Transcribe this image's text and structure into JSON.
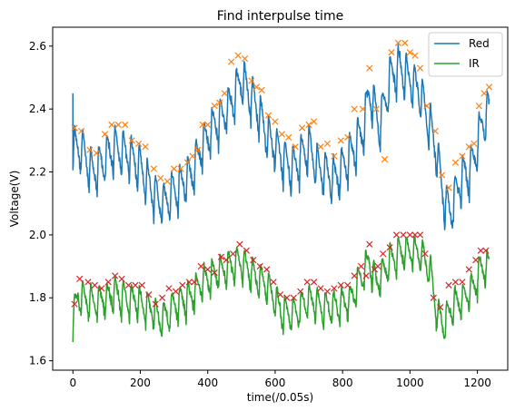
{
  "chart_data": {
    "type": "line",
    "title": "Find interpulse time",
    "xlabel": "time(/0.05s)",
    "ylabel": "Voltage(V)",
    "xlim": [
      -60,
      1290
    ],
    "ylim": [
      1.57,
      2.66
    ],
    "x_ticks": [
      0,
      200,
      400,
      600,
      800,
      1000,
      1200
    ],
    "y_ticks": [
      1.6,
      1.8,
      2.0,
      2.2,
      2.4,
      2.6
    ],
    "x_tick_labels": [
      "0",
      "200",
      "400",
      "600",
      "800",
      "1000",
      "1200"
    ],
    "y_tick_labels": [
      "1.6",
      "1.8",
      "2.0",
      "2.2",
      "2.4",
      "2.6"
    ],
    "legend_position": "top-right",
    "grid": false,
    "series": [
      {
        "name": "Red",
        "color": "#1f77b4",
        "peak_color": "#ff7f0e",
        "signal_x_max": 1235,
        "pulse_period": 24,
        "pulse_depth": 0.155,
        "envelope": [
          [
            0,
            2.35
          ],
          [
            30,
            2.34
          ],
          [
            60,
            2.27
          ],
          [
            100,
            2.32
          ],
          [
            120,
            2.35
          ],
          [
            160,
            2.33
          ],
          [
            200,
            2.29
          ],
          [
            240,
            2.2
          ],
          [
            270,
            2.17
          ],
          [
            300,
            2.21
          ],
          [
            350,
            2.26
          ],
          [
            380,
            2.35
          ],
          [
            420,
            2.42
          ],
          [
            460,
            2.47
          ],
          [
            500,
            2.57
          ],
          [
            540,
            2.49
          ],
          [
            580,
            2.38
          ],
          [
            620,
            2.32
          ],
          [
            650,
            2.28
          ],
          [
            700,
            2.35
          ],
          [
            730,
            2.28
          ],
          [
            780,
            2.25
          ],
          [
            830,
            2.34
          ],
          [
            860,
            2.4
          ],
          [
            880,
            2.53
          ],
          [
            910,
            2.42
          ],
          [
            940,
            2.57
          ],
          [
            970,
            2.61
          ],
          [
            1000,
            2.56
          ],
          [
            1030,
            2.53
          ],
          [
            1060,
            2.42
          ],
          [
            1080,
            2.33
          ],
          [
            1100,
            2.19
          ],
          [
            1120,
            2.14
          ],
          [
            1150,
            2.25
          ],
          [
            1180,
            2.28
          ],
          [
            1210,
            2.41
          ],
          [
            1235,
            2.47
          ]
        ],
        "peaks": [
          [
            5,
            2.34
          ],
          [
            25,
            2.33
          ],
          [
            50,
            2.27
          ],
          [
            70,
            2.26
          ],
          [
            95,
            2.32
          ],
          [
            115,
            2.35
          ],
          [
            135,
            2.35
          ],
          [
            155,
            2.35
          ],
          [
            175,
            2.3
          ],
          [
            195,
            2.29
          ],
          [
            215,
            2.28
          ],
          [
            240,
            2.21
          ],
          [
            260,
            2.18
          ],
          [
            280,
            2.17
          ],
          [
            300,
            2.21
          ],
          [
            320,
            2.21
          ],
          [
            340,
            2.23
          ],
          [
            355,
            2.25
          ],
          [
            370,
            2.27
          ],
          [
            385,
            2.35
          ],
          [
            400,
            2.35
          ],
          [
            420,
            2.41
          ],
          [
            435,
            2.42
          ],
          [
            450,
            2.45
          ],
          [
            470,
            2.55
          ],
          [
            490,
            2.57
          ],
          [
            510,
            2.56
          ],
          [
            530,
            2.49
          ],
          [
            545,
            2.47
          ],
          [
            560,
            2.46
          ],
          [
            580,
            2.38
          ],
          [
            600,
            2.36
          ],
          [
            620,
            2.32
          ],
          [
            640,
            2.31
          ],
          [
            660,
            2.28
          ],
          [
            680,
            2.34
          ],
          [
            700,
            2.35
          ],
          [
            715,
            2.36
          ],
          [
            735,
            2.28
          ],
          [
            755,
            2.29
          ],
          [
            775,
            2.25
          ],
          [
            795,
            2.3
          ],
          [
            815,
            2.31
          ],
          [
            835,
            2.4
          ],
          [
            860,
            2.4
          ],
          [
            880,
            2.53
          ],
          [
            900,
            2.4
          ],
          [
            925,
            2.24
          ],
          [
            945,
            2.58
          ],
          [
            965,
            2.61
          ],
          [
            985,
            2.61
          ],
          [
            1000,
            2.58
          ],
          [
            1015,
            2.57
          ],
          [
            1030,
            2.53
          ],
          [
            1050,
            2.41
          ],
          [
            1075,
            2.33
          ],
          [
            1095,
            2.19
          ],
          [
            1115,
            2.15
          ],
          [
            1135,
            2.23
          ],
          [
            1155,
            2.25
          ],
          [
            1175,
            2.28
          ],
          [
            1190,
            2.29
          ],
          [
            1205,
            2.41
          ],
          [
            1220,
            2.45
          ],
          [
            1235,
            2.47
          ]
        ]
      },
      {
        "name": "IR",
        "color": "#2ca02c",
        "peak_color": "#d62728",
        "signal_x_max": 1235,
        "pulse_period": 24,
        "pulse_depth": 0.115,
        "envelope": [
          [
            0,
            1.78
          ],
          [
            15,
            1.86
          ],
          [
            60,
            1.84
          ],
          [
            100,
            1.85
          ],
          [
            120,
            1.87
          ],
          [
            160,
            1.85
          ],
          [
            200,
            1.84
          ],
          [
            240,
            1.81
          ],
          [
            260,
            1.78
          ],
          [
            300,
            1.83
          ],
          [
            350,
            1.86
          ],
          [
            380,
            1.9
          ],
          [
            420,
            1.93
          ],
          [
            460,
            1.95
          ],
          [
            500,
            1.97
          ],
          [
            540,
            1.92
          ],
          [
            580,
            1.89
          ],
          [
            620,
            1.81
          ],
          [
            650,
            1.8
          ],
          [
            700,
            1.85
          ],
          [
            740,
            1.82
          ],
          [
            780,
            1.83
          ],
          [
            820,
            1.84
          ],
          [
            860,
            1.93
          ],
          [
            880,
            1.97
          ],
          [
            900,
            1.9
          ],
          [
            940,
            1.97
          ],
          [
            970,
            2.0
          ],
          [
            1000,
            2.0
          ],
          [
            1030,
            2.0
          ],
          [
            1060,
            1.94
          ],
          [
            1080,
            1.8
          ],
          [
            1100,
            1.77
          ],
          [
            1130,
            1.84
          ],
          [
            1160,
            1.85
          ],
          [
            1190,
            1.89
          ],
          [
            1210,
            1.95
          ],
          [
            1235,
            1.95
          ]
        ],
        "peaks": [
          [
            5,
            1.78
          ],
          [
            20,
            1.86
          ],
          [
            45,
            1.85
          ],
          [
            65,
            1.84
          ],
          [
            85,
            1.83
          ],
          [
            105,
            1.85
          ],
          [
            125,
            1.87
          ],
          [
            145,
            1.86
          ],
          [
            165,
            1.84
          ],
          [
            185,
            1.84
          ],
          [
            205,
            1.84
          ],
          [
            225,
            1.81
          ],
          [
            245,
            1.78
          ],
          [
            265,
            1.8
          ],
          [
            285,
            1.83
          ],
          [
            305,
            1.82
          ],
          [
            325,
            1.84
          ],
          [
            345,
            1.85
          ],
          [
            360,
            1.85
          ],
          [
            380,
            1.9
          ],
          [
            400,
            1.89
          ],
          [
            420,
            1.88
          ],
          [
            440,
            1.93
          ],
          [
            455,
            1.92
          ],
          [
            475,
            1.94
          ],
          [
            495,
            1.97
          ],
          [
            515,
            1.95
          ],
          [
            535,
            1.92
          ],
          [
            555,
            1.9
          ],
          [
            575,
            1.89
          ],
          [
            595,
            1.85
          ],
          [
            615,
            1.81
          ],
          [
            635,
            1.8
          ],
          [
            655,
            1.8
          ],
          [
            675,
            1.82
          ],
          [
            695,
            1.85
          ],
          [
            715,
            1.85
          ],
          [
            735,
            1.83
          ],
          [
            755,
            1.82
          ],
          [
            775,
            1.83
          ],
          [
            795,
            1.84
          ],
          [
            815,
            1.84
          ],
          [
            835,
            1.87
          ],
          [
            855,
            1.9
          ],
          [
            870,
            1.87
          ],
          [
            880,
            1.97
          ],
          [
            895,
            1.89
          ],
          [
            905,
            1.9
          ],
          [
            920,
            1.94
          ],
          [
            940,
            1.96
          ],
          [
            960,
            2.0
          ],
          [
            980,
            2.0
          ],
          [
            1000,
            2.0
          ],
          [
            1015,
            2.0
          ],
          [
            1030,
            2.0
          ],
          [
            1045,
            1.94
          ],
          [
            1070,
            1.8
          ],
          [
            1090,
            1.77
          ],
          [
            1115,
            1.84
          ],
          [
            1135,
            1.85
          ],
          [
            1155,
            1.85
          ],
          [
            1175,
            1.89
          ],
          [
            1195,
            1.92
          ],
          [
            1210,
            1.95
          ],
          [
            1225,
            1.95
          ]
        ]
      }
    ]
  }
}
